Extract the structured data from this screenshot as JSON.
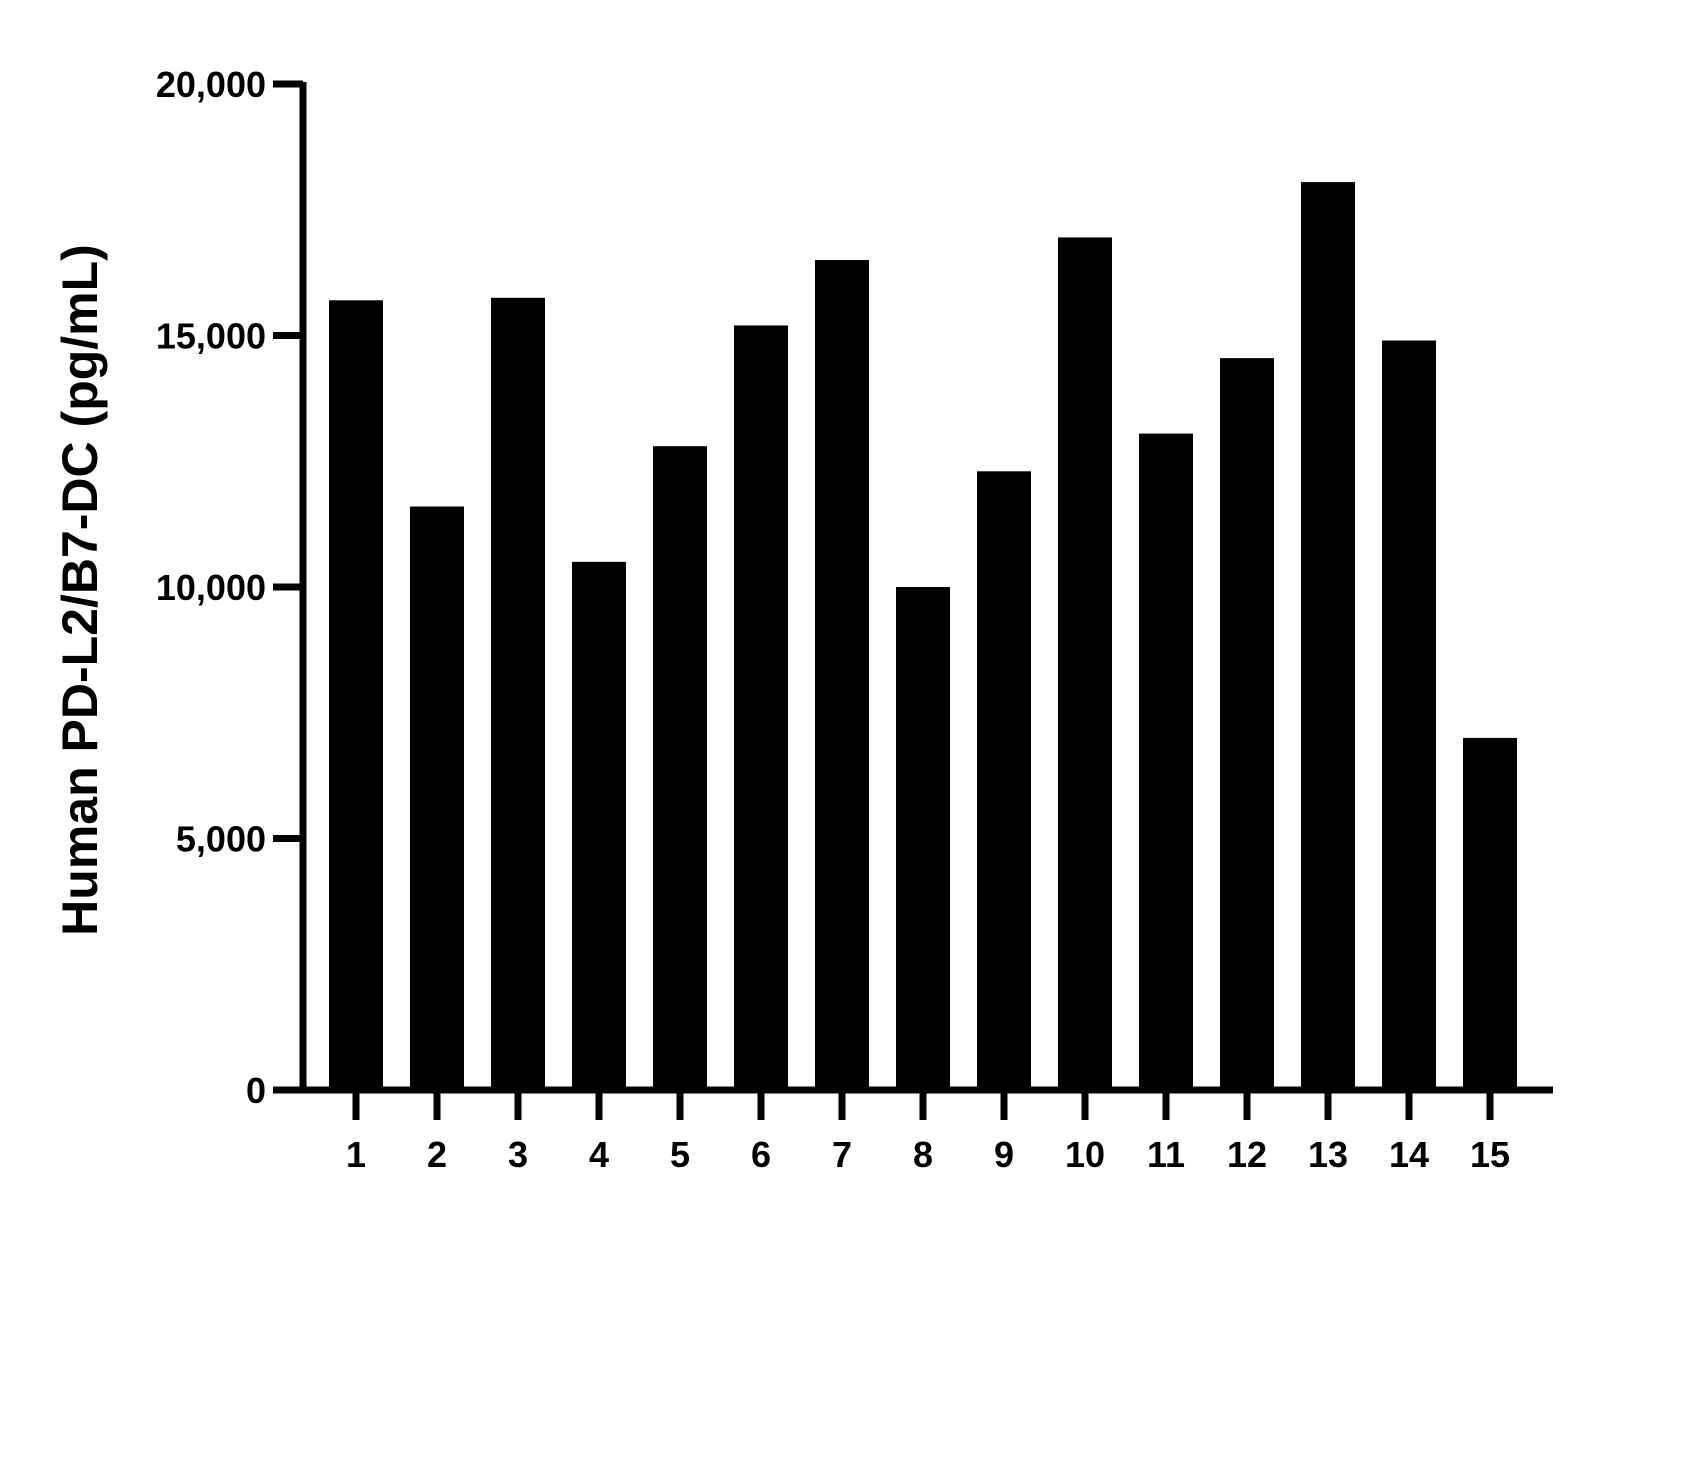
{
  "chart_data": {
    "type": "bar",
    "title": "",
    "xlabel": "",
    "ylabel": "Human PD-L2/B7-DC (pg/mL)",
    "categories": [
      "1",
      "2",
      "3",
      "4",
      "5",
      "6",
      "7",
      "8",
      "9",
      "10",
      "11",
      "12",
      "13",
      "14",
      "15"
    ],
    "values": [
      15700,
      11600,
      15750,
      10500,
      12800,
      15200,
      16500,
      10000,
      12300,
      16950,
      13050,
      14550,
      18050,
      14900,
      7000
    ],
    "ylim": [
      0,
      20000
    ],
    "yticks": [
      0,
      5000,
      10000,
      15000,
      20000
    ],
    "ytick_labels": [
      "0",
      "5,000",
      "10,000",
      "15,000",
      "20,000"
    ],
    "grid": false,
    "legend": "none",
    "bar_color": "#000000"
  }
}
